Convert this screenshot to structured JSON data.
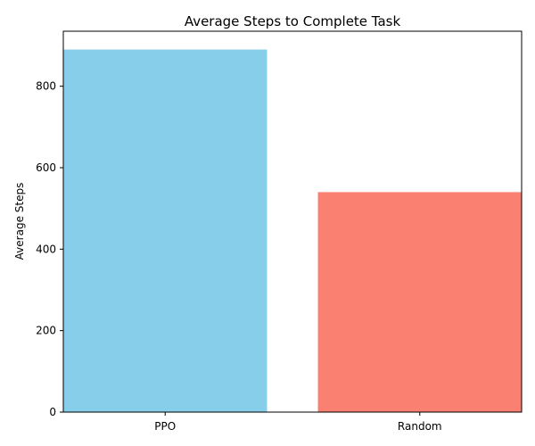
{
  "chart_data": {
    "type": "bar",
    "title": "Average Steps to Complete Task",
    "xlabel": "",
    "ylabel": "Average Steps",
    "categories": [
      "PPO",
      "Random"
    ],
    "values": [
      890,
      540
    ],
    "colors": [
      "#87ceeb",
      "#fa8072"
    ],
    "ylim": [
      0,
      935
    ],
    "yticks": [
      0,
      200,
      400,
      600,
      800
    ],
    "grid": false,
    "legend": "none"
  }
}
